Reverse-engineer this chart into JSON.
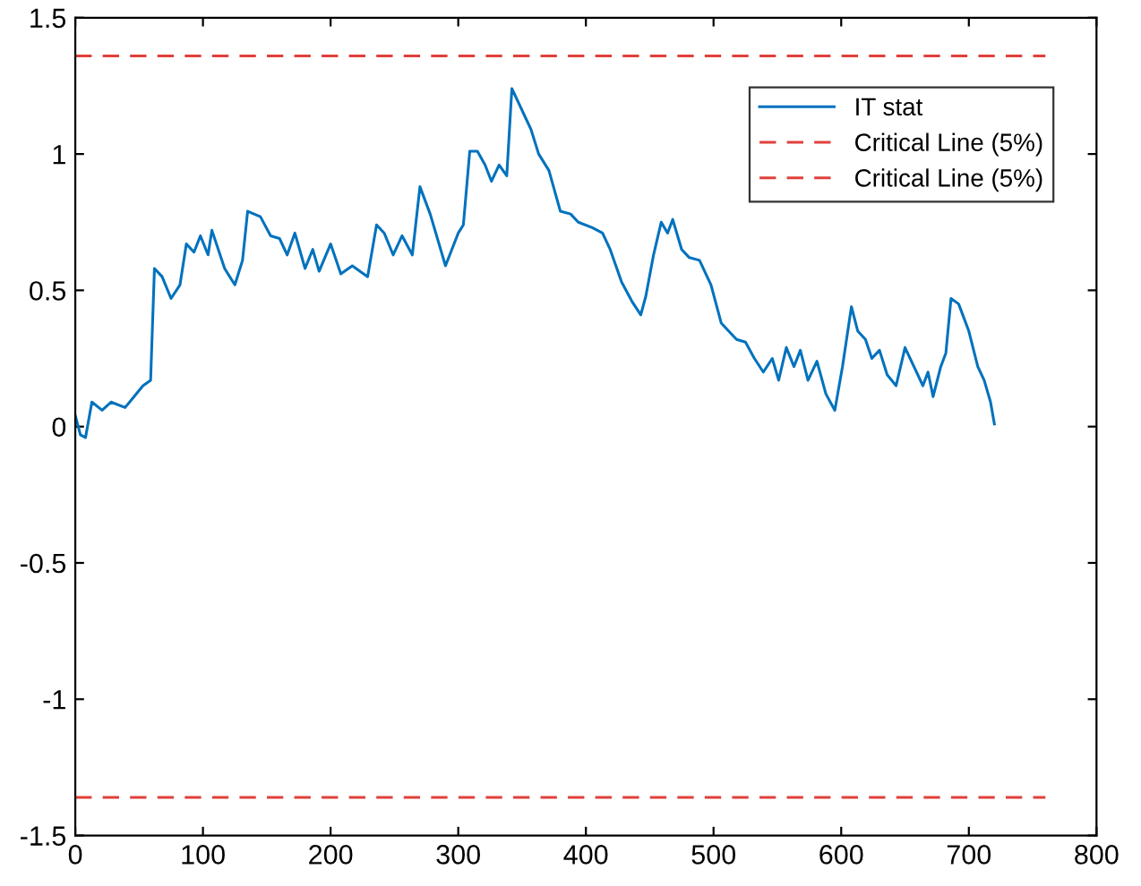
{
  "chart_data": {
    "type": "line",
    "xlim": [
      0,
      800
    ],
    "ylim": [
      -1.5,
      1.5
    ],
    "xticks": [
      0,
      100,
      200,
      300,
      400,
      500,
      600,
      700,
      800
    ],
    "yticks": [
      -1.5,
      -1,
      -0.5,
      0,
      0.5,
      1,
      1.5
    ],
    "grid": false,
    "legend": "top right",
    "marker": "none",
    "series": [
      {
        "name": "IT stat",
        "color": "#0072bd",
        "line_style": "solid",
        "x": [
          0,
          4,
          8,
          13,
          21,
          28,
          39,
          46,
          53,
          59,
          62,
          68,
          75,
          82,
          87,
          93,
          98,
          104,
          107,
          117,
          125,
          131,
          135,
          145,
          153,
          160,
          166,
          172,
          180,
          186,
          191,
          200,
          208,
          217,
          229,
          236,
          242,
          249,
          256,
          264,
          270,
          278,
          290,
          295,
          300,
          304,
          309,
          315,
          321,
          326,
          332,
          338,
          342,
          347,
          353,
          357,
          363,
          371,
          380,
          388,
          394,
          405,
          413,
          419,
          428,
          436,
          443,
          447,
          453,
          459,
          464,
          468,
          475,
          481,
          489,
          498,
          506,
          518,
          525,
          532,
          539,
          546,
          551,
          557,
          563,
          568,
          574,
          581,
          588,
          595,
          601,
          608,
          613,
          619,
          624,
          630,
          636,
          643,
          650,
          657,
          664,
          668,
          672,
          678,
          682,
          686,
          692,
          700,
          707,
          712,
          717,
          720
        ],
        "values": [
          0.04,
          -0.03,
          -0.04,
          0.09,
          0.06,
          0.09,
          0.07,
          0.11,
          0.15,
          0.17,
          0.58,
          0.55,
          0.47,
          0.52,
          0.67,
          0.64,
          0.7,
          0.63,
          0.72,
          0.58,
          0.52,
          0.61,
          0.79,
          0.77,
          0.7,
          0.69,
          0.63,
          0.71,
          0.58,
          0.65,
          0.57,
          0.67,
          0.56,
          0.59,
          0.55,
          0.74,
          0.71,
          0.63,
          0.7,
          0.63,
          0.88,
          0.78,
          0.59,
          0.65,
          0.71,
          0.74,
          1.01,
          1.01,
          0.96,
          0.9,
          0.96,
          0.92,
          1.24,
          1.19,
          1.13,
          1.09,
          1.0,
          0.94,
          0.79,
          0.78,
          0.75,
          0.73,
          0.71,
          0.65,
          0.53,
          0.46,
          0.41,
          0.48,
          0.63,
          0.75,
          0.71,
          0.76,
          0.65,
          0.62,
          0.61,
          0.52,
          0.38,
          0.32,
          0.31,
          0.25,
          0.2,
          0.25,
          0.17,
          0.29,
          0.22,
          0.28,
          0.17,
          0.24,
          0.12,
          0.06,
          0.22,
          0.44,
          0.35,
          0.32,
          0.25,
          0.28,
          0.19,
          0.15,
          0.29,
          0.22,
          0.15,
          0.2,
          0.11,
          0.22,
          0.27,
          0.47,
          0.45,
          0.35,
          0.22,
          0.17,
          0.09,
          0.01
        ]
      },
      {
        "name": "Critical Line (5%)",
        "color": "#e0403a",
        "line_style": "dashed",
        "x": [
          0,
          760
        ],
        "values": [
          1.36,
          1.36
        ]
      },
      {
        "name": "Critical Line (5%)",
        "color": "#e0403a",
        "line_style": "dashed",
        "x": [
          0,
          760
        ],
        "values": [
          -1.36,
          -1.36
        ]
      }
    ]
  }
}
